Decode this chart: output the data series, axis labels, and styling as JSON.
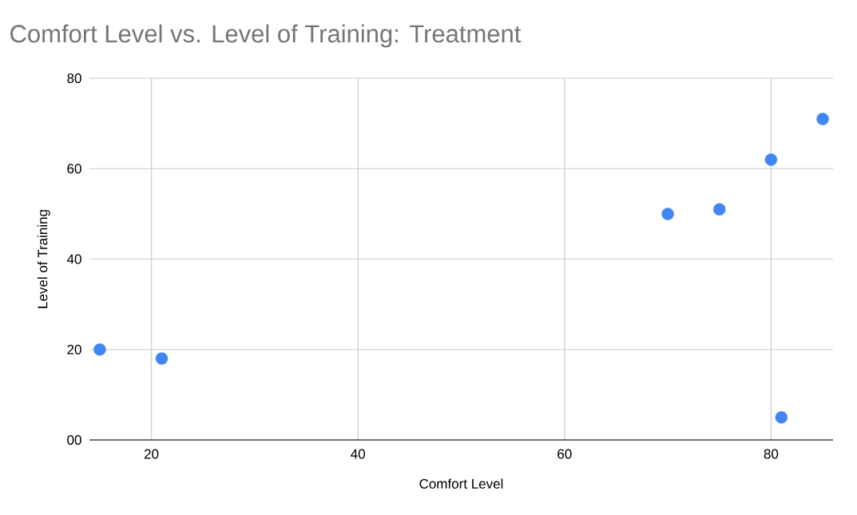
{
  "chart_data": {
    "type": "scatter",
    "title": "Comfort Level vs. Level of Training: Treatment",
    "xlabel": "Comfort Level",
    "ylabel": "Level of Training",
    "x": [
      15,
      21,
      70,
      75,
      80,
      85,
      81
    ],
    "series": [
      {
        "color": "#4285f4",
        "values": [
          20,
          18,
          50,
          51,
          62,
          71,
          5
        ]
      }
    ],
    "xlim": [
      14,
      86
    ],
    "xticks": [
      20,
      40,
      60,
      80
    ],
    "ylim": [
      0,
      80
    ],
    "yticks": [
      {
        "value": 0,
        "label": "00"
      },
      20,
      40,
      60,
      80
    ],
    "grid": true,
    "marker": "circle"
  }
}
